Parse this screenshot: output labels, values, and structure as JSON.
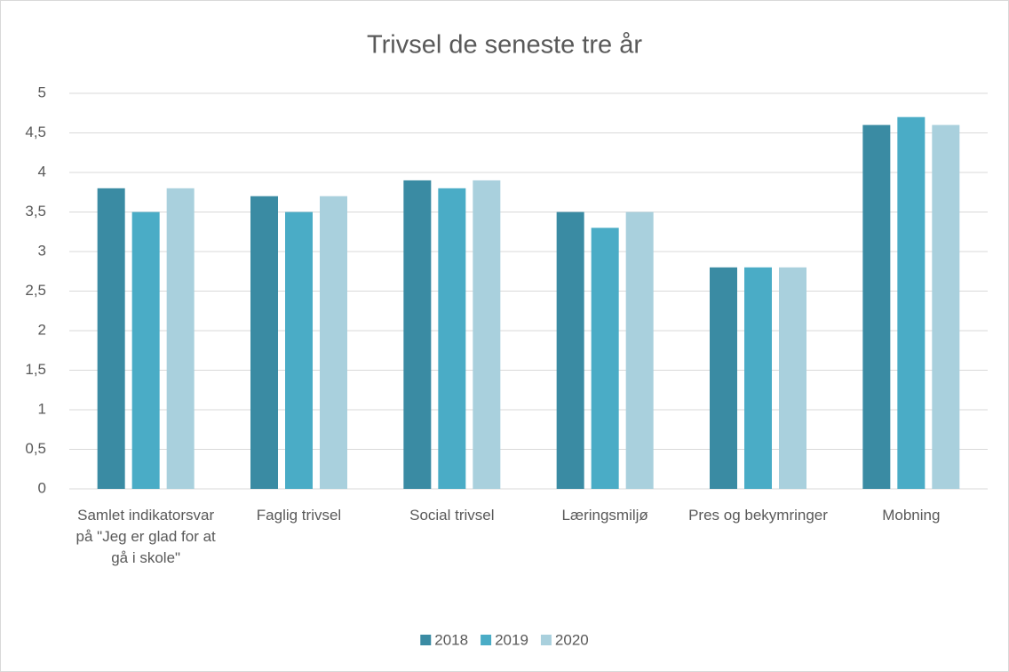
{
  "chart_data": {
    "type": "bar",
    "title": "Trivsel de seneste tre år",
    "categories": [
      "Samlet indikatorsvar på \"Jeg er glad for at gå i skole\"",
      "Faglig trivsel",
      "Social trivsel",
      "Læringsmiljø",
      "Pres og bekymringer",
      "Mobning"
    ],
    "series": [
      {
        "name": "2018",
        "color": "#3a8ba3",
        "values": [
          3.8,
          3.7,
          3.9,
          3.5,
          2.8,
          4.6
        ]
      },
      {
        "name": "2019",
        "color": "#4aacc6",
        "values": [
          3.5,
          3.5,
          3.8,
          3.3,
          2.8,
          4.7
        ]
      },
      {
        "name": "2020",
        "color": "#a9d0dd",
        "values": [
          3.8,
          3.7,
          3.9,
          3.5,
          2.8,
          4.6
        ]
      }
    ],
    "ylim": [
      0,
      5
    ],
    "yticks": [
      0,
      {
        "value": 0.5,
        "label": "0,5"
      },
      1,
      {
        "value": 1.5,
        "label": "1,5"
      },
      2,
      {
        "value": 2.5,
        "label": "2,5"
      },
      3,
      {
        "value": 3.5,
        "label": "3,5"
      },
      4,
      {
        "value": 4.5,
        "label": "4,5"
      },
      5
    ],
    "grid": true,
    "legend": "bottom"
  }
}
